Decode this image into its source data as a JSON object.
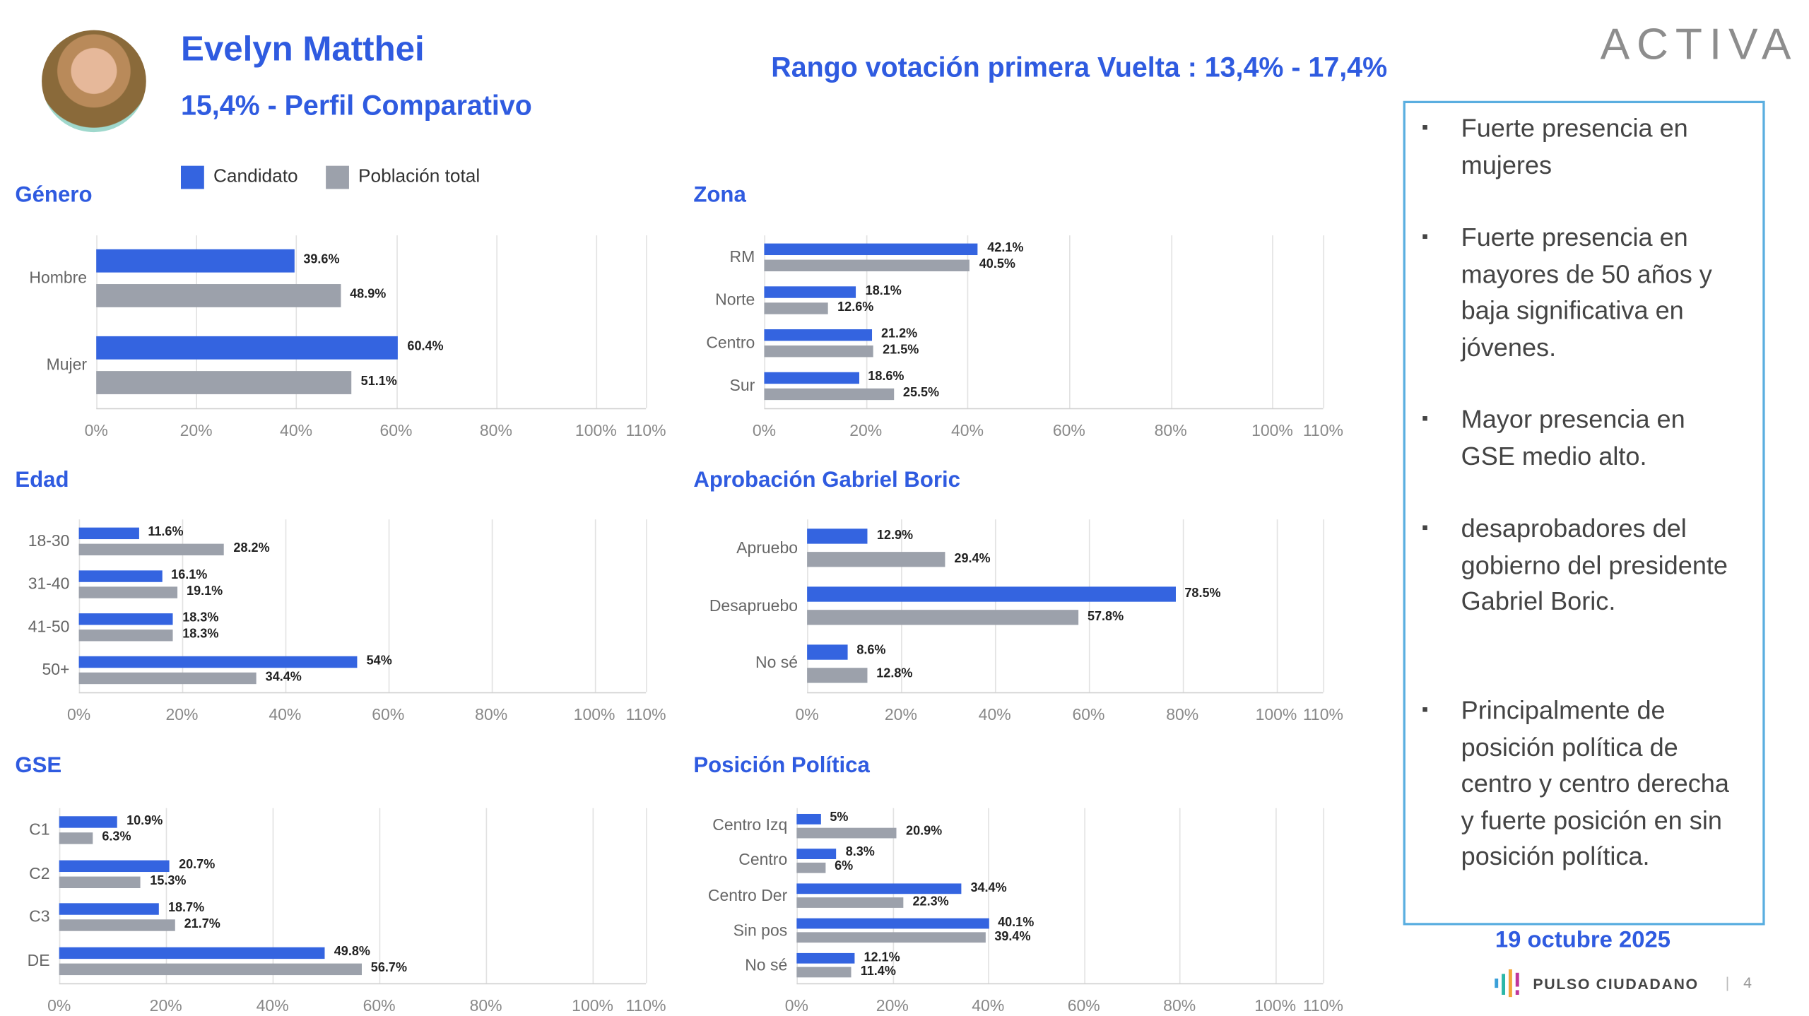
{
  "header": {
    "name": "Evelyn Matthei",
    "subtitle": "15,4% - Perfil Comparativo",
    "range": "Rango votación primera Vuelta : 13,4% - 17,4%",
    "logo": "ACTIVA"
  },
  "legend": {
    "candidate": "Candidato",
    "population": "Población total"
  },
  "colors": {
    "candidate": "#3464e0",
    "population": "#9ca1ab",
    "accent": "#2f5be0",
    "box_border": "#5aaee0"
  },
  "chart_data": [
    {
      "type": "bar",
      "title": "Género",
      "categories": [
        "Hombre",
        "Mujer"
      ],
      "series": [
        {
          "name": "Candidato",
          "values": [
            39.6,
            60.4
          ],
          "labels": [
            "39.6%",
            "60.4%"
          ]
        },
        {
          "name": "Población total",
          "values": [
            48.9,
            51.1
          ],
          "labels": [
            "48.9%",
            "51.1%"
          ]
        }
      ],
      "xlim": [
        0,
        110
      ],
      "ticks": [
        "0%",
        "20%",
        "40%",
        "60%",
        "80%",
        "100%",
        "110%"
      ],
      "tick_values": [
        0,
        20,
        40,
        60,
        80,
        100,
        110
      ]
    },
    {
      "type": "bar",
      "title": "Zona",
      "categories": [
        "RM",
        "Norte",
        "Centro",
        "Sur"
      ],
      "series": [
        {
          "name": "Candidato",
          "values": [
            42.1,
            18.1,
            21.2,
            18.6
          ],
          "labels": [
            "42.1%",
            "18.1%",
            "21.2%",
            "18.6%"
          ]
        },
        {
          "name": "Población total",
          "values": [
            40.5,
            12.6,
            21.5,
            25.5
          ],
          "labels": [
            "40.5%",
            "12.6%",
            "21.5%",
            "25.5%"
          ]
        }
      ],
      "xlim": [
        0,
        110
      ],
      "ticks": [
        "0%",
        "20%",
        "40%",
        "60%",
        "80%",
        "100%",
        "110%"
      ],
      "tick_values": [
        0,
        20,
        40,
        60,
        80,
        100,
        110
      ]
    },
    {
      "type": "bar",
      "title": "Edad",
      "categories": [
        "18-30",
        "31-40",
        "41-50",
        "50+"
      ],
      "series": [
        {
          "name": "Candidato",
          "values": [
            11.6,
            16.1,
            18.3,
            54
          ],
          "labels": [
            "11.6%",
            "16.1%",
            "18.3%",
            "54%"
          ]
        },
        {
          "name": "Población total",
          "values": [
            28.2,
            19.1,
            18.3,
            34.4
          ],
          "labels": [
            "28.2%",
            "19.1%",
            "18.3%",
            "34.4%"
          ]
        }
      ],
      "xlim": [
        0,
        110
      ],
      "ticks": [
        "0%",
        "20%",
        "40%",
        "60%",
        "80%",
        "100%",
        "110%"
      ],
      "tick_values": [
        0,
        20,
        40,
        60,
        80,
        100,
        110
      ]
    },
    {
      "type": "bar",
      "title": "Aprobación Gabriel Boric",
      "categories": [
        "Apruebo",
        "Desapruebo",
        "No sé"
      ],
      "series": [
        {
          "name": "Candidato",
          "values": [
            12.9,
            78.5,
            8.6
          ],
          "labels": [
            "12.9%",
            "78.5%",
            "8.6%"
          ]
        },
        {
          "name": "Población total",
          "values": [
            29.4,
            57.8,
            12.8
          ],
          "labels": [
            "29.4%",
            "57.8%",
            "12.8%"
          ]
        }
      ],
      "xlim": [
        0,
        110
      ],
      "ticks": [
        "0%",
        "20%",
        "40%",
        "60%",
        "80%",
        "100%",
        "110%"
      ],
      "tick_values": [
        0,
        20,
        40,
        60,
        80,
        100,
        110
      ]
    },
    {
      "type": "bar",
      "title": "GSE",
      "categories": [
        "C1",
        "C2",
        "C3",
        "DE"
      ],
      "series": [
        {
          "name": "Candidato",
          "values": [
            10.9,
            20.7,
            18.7,
            49.8
          ],
          "labels": [
            "10.9%",
            "20.7%",
            "18.7%",
            "49.8%"
          ]
        },
        {
          "name": "Población total",
          "values": [
            6.3,
            15.3,
            21.7,
            56.7
          ],
          "labels": [
            "6.3%",
            "15.3%",
            "21.7%",
            "56.7%"
          ]
        }
      ],
      "xlim": [
        0,
        110
      ],
      "ticks": [
        "0%",
        "20%",
        "40%",
        "60%",
        "80%",
        "100%",
        "110%"
      ],
      "tick_values": [
        0,
        20,
        40,
        60,
        80,
        100,
        110
      ]
    },
    {
      "type": "bar",
      "title": "Posición Política",
      "categories": [
        "Centro Izq",
        "Centro",
        "Centro Der",
        "Sin pos",
        "No sé"
      ],
      "series": [
        {
          "name": "Candidato",
          "values": [
            5,
            8.3,
            34.4,
            40.1,
            12.1
          ],
          "labels": [
            "5%",
            "8.3%",
            "34.4%",
            "40.1%",
            "12.1%"
          ]
        },
        {
          "name": "Población total",
          "values": [
            20.9,
            6,
            22.3,
            39.4,
            11.4
          ],
          "labels": [
            "20.9%",
            "6%",
            "22.3%",
            "39.4%",
            "11.4%"
          ]
        }
      ],
      "xlim": [
        0,
        110
      ],
      "ticks": [
        "0%",
        "20%",
        "40%",
        "60%",
        "80%",
        "100%",
        "110%"
      ],
      "tick_values": [
        0,
        20,
        40,
        60,
        80,
        100,
        110
      ]
    }
  ],
  "summary": {
    "bullets": [
      "Fuerte presencia en mujeres",
      "Fuerte presencia en mayores de 50 años y baja significativa en jóvenes.",
      "Mayor presencia en GSE medio alto.",
      "desaprobadores  del gobierno del presidente  Gabriel Boric.",
      "Principalmente de posición política de centro y  centro derecha y fuerte posición en sin posición política."
    ],
    "date": "19 octubre 2025"
  },
  "footer": {
    "brand": "PULSO CIUDADANO",
    "separator": "|",
    "page": "4"
  }
}
